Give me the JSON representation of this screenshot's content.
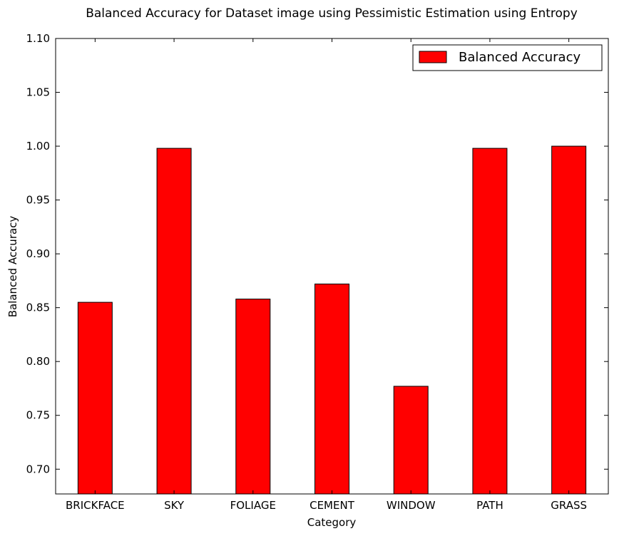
{
  "chart_data": {
    "type": "bar",
    "title": "Balanced Accuracy for Dataset image using Pessimistic Estimation using Entropy",
    "xlabel": "Category",
    "ylabel": "Balanced Accuracy",
    "categories": [
      "BRICKFACE",
      "SKY",
      "FOLIAGE",
      "CEMENT",
      "WINDOW",
      "PATH",
      "GRASS"
    ],
    "series": [
      {
        "name": "Balanced Accuracy",
        "values": [
          0.855,
          0.998,
          0.858,
          0.872,
          0.777,
          0.998,
          1.0
        ],
        "color": "#ff0000"
      }
    ],
    "ylim": [
      0.677,
      1.1
    ],
    "yticks": [
      "0.70",
      "0.75",
      "0.80",
      "0.85",
      "0.90",
      "0.95",
      "1.00",
      "1.05",
      "1.10"
    ],
    "grid": false,
    "legend_position": "top-right"
  }
}
